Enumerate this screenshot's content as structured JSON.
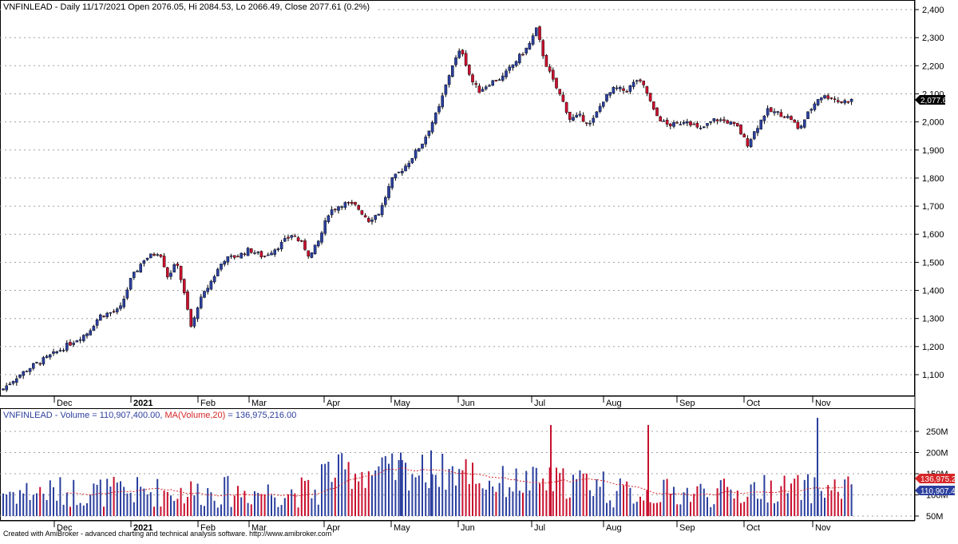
{
  "price_panel": {
    "title": "VNFINLEAD - Daily 11/17/2021 Open 2076.05, Hi 2084.53, Lo 2066.49, Close 2077.61 (0.2%)",
    "last_price_label": "2,077.61",
    "y_ticks": [
      "1,100",
      "1,200",
      "1,300",
      "1,400",
      "1,500",
      "1,600",
      "1,700",
      "1,800",
      "1,900",
      "2,000",
      "2,100",
      "2,200",
      "2,300",
      "2,400"
    ],
    "tick_values": [
      1100,
      1200,
      1300,
      1400,
      1500,
      1600,
      1700,
      1800,
      1900,
      2000,
      2100,
      2200,
      2300,
      2400
    ]
  },
  "volume_panel": {
    "title_prefix": "VNFINLEAD - Volume = 110,907,400.00, ",
    "title_ma": "MA(Volume,20)",
    "title_suffix": " = 136,975,216.00",
    "y_ticks": [
      "50M",
      "100M",
      "150M",
      "200M",
      "250M"
    ],
    "tick_values": [
      50,
      100,
      150,
      200,
      250
    ],
    "ma_label": "136,975.2",
    "vol_label": "110,907.4"
  },
  "x_labels": [
    "Dec",
    "2021",
    "Feb",
    "Mar",
    "Apr",
    "May",
    "Jun",
    "Jul",
    "Aug",
    "Sep",
    "Oct",
    "Nov"
  ],
  "footer": "Created with AmiBroker - advanced charting and technical analysis software. http://www.amibroker.com",
  "colors": {
    "up": "#2b3f9e",
    "down": "#c8102e",
    "ma": "#d62728",
    "grid": "#a0a0a0"
  },
  "chart_data": [
    {
      "type": "candlestick",
      "title": "VNFINLEAD - Daily 11/17/2021 Open 2076.05, Hi 2084.53, Lo 2066.49, Close 2077.61 (0.2%)",
      "ylim": [
        1030,
        2440
      ],
      "x_range": [
        "Nov 2020",
        "Nov 2021"
      ],
      "note_values": "approximate daily closes (month anchors)",
      "series": [
        {
          "name": "VNFINLEAD",
          "anchor_months": [
            "Nov",
            "Dec",
            "Jan",
            "Feb",
            "Mar",
            "Apr",
            "May",
            "Jun",
            "Jul",
            "Aug",
            "Sep",
            "Oct",
            "Nov"
          ],
          "anchor_closes": [
            1050,
            1175,
            1515,
            1330,
            1510,
            1700,
            1880,
            2200,
            2300,
            2080,
            2000,
            1960,
            2077.61
          ]
        }
      ]
    },
    {
      "type": "bar",
      "title": "VNFINLEAD - Volume = 110,907,400.00, MA(Volume,20) = 136,975,216.00",
      "ylim": [
        25,
        290
      ],
      "units": "M",
      "series": [
        {
          "name": "Volume",
          "last": 110.9074
        },
        {
          "name": "MA(Volume,20)",
          "last": 136.975216
        }
      ]
    }
  ]
}
